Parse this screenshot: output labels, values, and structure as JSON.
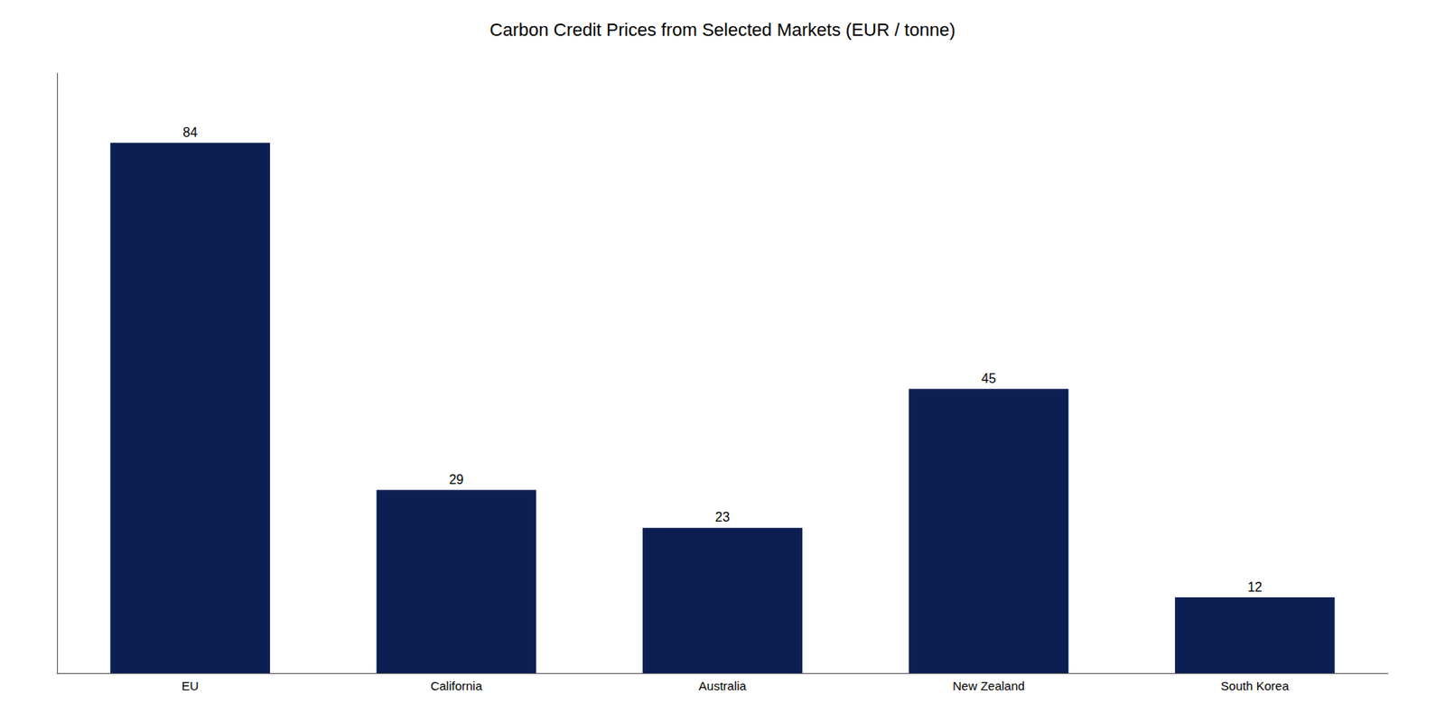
{
  "chart_data": {
    "type": "bar",
    "title": "Carbon Credit Prices from Selected Markets (EUR / tonne)",
    "categories": [
      "EU",
      "California",
      "Australia",
      "New Zealand",
      "South Korea"
    ],
    "values": [
      84,
      29,
      23,
      45,
      12
    ],
    "color": "#0d1f52",
    "ylim": [
      0,
      95
    ],
    "grid": false,
    "data_labels": true,
    "tick_labels": "x"
  }
}
